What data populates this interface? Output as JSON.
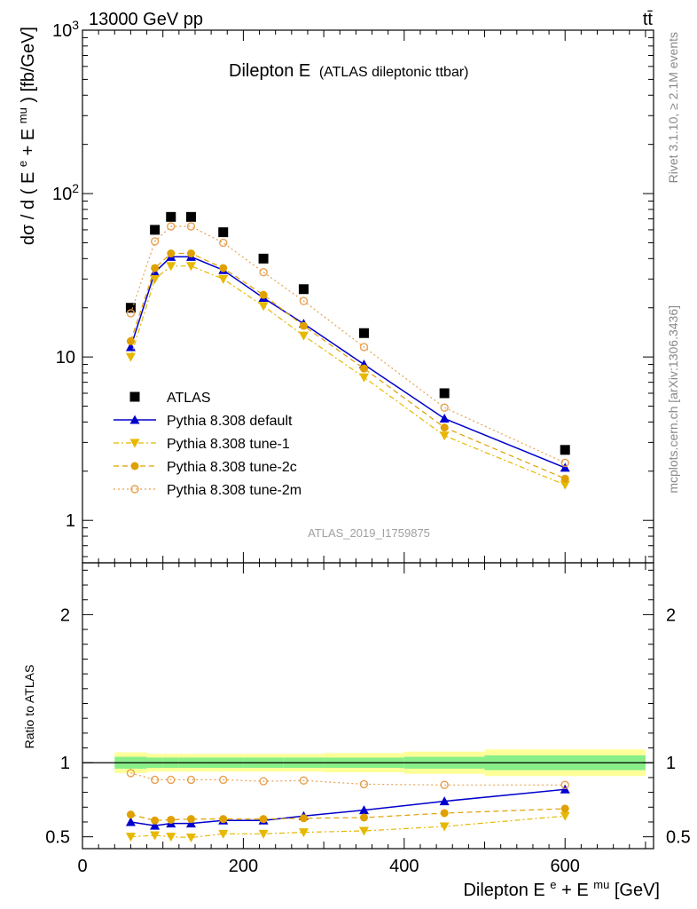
{
  "header": {
    "left": "13000 GeV pp",
    "right": "tt̄"
  },
  "side_labels": {
    "top": "Rivet 3.1.10, ≥ 2.1M events",
    "bottom": "mcplots.cern.ch [arXiv:1306.3436]"
  },
  "watermark": "ATLAS_2019_I1759875",
  "colors": {
    "atlas": "#000000",
    "default": "#0000cc",
    "tune1": "#e6b800",
    "tune2c": "#e0a000",
    "tune2m": "#e8a050",
    "band_inner": "#88ee88",
    "band_outer": "#ffff99"
  },
  "chart_data": [
    {
      "type": "scatter",
      "title": "Dilepton E",
      "subtitle": "(ATLAS dileptonic ttbar)",
      "ylabel": "dσ / d ( Eᵉ + Eᵐᵘ ) [fb/GeV]",
      "ylabel_parts": {
        "pre": "dσ / d ( E",
        "sup1": "e",
        "mid": " + E",
        "sup2": "mu",
        "post": " ) [fb/GeV]"
      },
      "y_scale": "log",
      "ylim": [
        0.55,
        1000
      ],
      "xlim": [
        0,
        710
      ],
      "y_tick_labels": [
        {
          "v": 1,
          "label": "1"
        },
        {
          "v": 10,
          "label": "10"
        },
        {
          "v": 100,
          "base": "10",
          "exp": "2"
        },
        {
          "v": 1000,
          "base": "10",
          "exp": "3"
        }
      ],
      "x": [
        60,
        90,
        110,
        135,
        175,
        225,
        275,
        350,
        450,
        600
      ],
      "series": [
        {
          "name": "ATLAS",
          "key": "atlas",
          "marker": "square",
          "line": "none",
          "values": [
            20,
            60,
            72,
            72,
            58,
            40,
            26,
            14,
            6,
            2.7
          ]
        },
        {
          "name": "Pythia 8.308 default",
          "key": "default",
          "marker": "triangle-up",
          "line": "solid",
          "values": [
            11.5,
            33,
            41,
            41,
            34,
            23,
            16,
            9,
            4.2,
            2.1
          ]
        },
        {
          "name": "Pythia 8.308 tune-1",
          "key": "tune1",
          "marker": "triangle-down",
          "line": "dashdot",
          "values": [
            10,
            30,
            36,
            36,
            30,
            20.5,
            13.5,
            7.5,
            3.3,
            1.65
          ]
        },
        {
          "name": "Pythia 8.308 tune-2c",
          "key": "tune2c",
          "marker": "circle",
          "line": "dashed",
          "values": [
            12.5,
            35,
            43,
            43,
            35,
            24,
            15.5,
            8.5,
            3.7,
            1.8
          ]
        },
        {
          "name": "Pythia 8.308 tune-2m",
          "key": "tune2m",
          "marker": "open-circle",
          "line": "dotted",
          "values": [
            18.5,
            51,
            63,
            63,
            50,
            33,
            22,
            11.5,
            4.9,
            2.25
          ]
        }
      ]
    },
    {
      "type": "scatter",
      "ylabel": "Ratio to ATLAS",
      "xlabel": "Dilepton Eᵉ + Eᵐᵘ [GeV]",
      "xlabel_parts": {
        "pre": "Dilepton E",
        "sup1": "e",
        "mid": " + E",
        "sup2": "mu",
        "post": " [GeV]"
      },
      "ylim": [
        0.42,
        2.35
      ],
      "xlim": [
        0,
        710
      ],
      "y_ticks": [
        0.5,
        1,
        2
      ],
      "y_tick_labels": [
        "0.5",
        "1",
        "2"
      ],
      "x_ticks": [
        0,
        200,
        400,
        600
      ],
      "x_tick_labels": [
        "0",
        "200",
        "400",
        "600"
      ],
      "uncertainty_bins": [
        {
          "x0": 40,
          "x1": 80,
          "inner": [
            0.96,
            1.04
          ],
          "outer": [
            0.93,
            1.07
          ]
        },
        {
          "x0": 80,
          "x1": 100,
          "inner": [
            0.965,
            1.035
          ],
          "outer": [
            0.94,
            1.06
          ]
        },
        {
          "x0": 100,
          "x1": 120,
          "inner": [
            0.965,
            1.035
          ],
          "outer": [
            0.94,
            1.06
          ]
        },
        {
          "x0": 120,
          "x1": 150,
          "inner": [
            0.965,
            1.035
          ],
          "outer": [
            0.94,
            1.06
          ]
        },
        {
          "x0": 150,
          "x1": 200,
          "inner": [
            0.965,
            1.035
          ],
          "outer": [
            0.94,
            1.06
          ]
        },
        {
          "x0": 200,
          "x1": 250,
          "inner": [
            0.965,
            1.035
          ],
          "outer": [
            0.94,
            1.06
          ]
        },
        {
          "x0": 250,
          "x1": 300,
          "inner": [
            0.965,
            1.035
          ],
          "outer": [
            0.94,
            1.06
          ]
        },
        {
          "x0": 300,
          "x1": 400,
          "inner": [
            0.965,
            1.035
          ],
          "outer": [
            0.935,
            1.065
          ]
        },
        {
          "x0": 400,
          "x1": 500,
          "inner": [
            0.96,
            1.04
          ],
          "outer": [
            0.925,
            1.075
          ]
        },
        {
          "x0": 500,
          "x1": 700,
          "inner": [
            0.95,
            1.05
          ],
          "outer": [
            0.91,
            1.09
          ]
        }
      ],
      "x": [
        60,
        90,
        110,
        135,
        175,
        225,
        275,
        350,
        450,
        600
      ],
      "series": [
        {
          "name": "Pythia 8.308 default",
          "key": "default",
          "marker": "triangle-up",
          "line": "solid",
          "values": [
            0.6,
            0.575,
            0.59,
            0.59,
            0.61,
            0.61,
            0.64,
            0.68,
            0.74,
            0.82
          ]
        },
        {
          "name": "Pythia 8.308 tune-1",
          "key": "tune1",
          "marker": "triangle-down",
          "line": "dashdot",
          "values": [
            0.5,
            0.51,
            0.5,
            0.495,
            0.52,
            0.52,
            0.53,
            0.54,
            0.57,
            0.64
          ]
        },
        {
          "name": "Pythia 8.308 tune-2c",
          "key": "tune2c",
          "marker": "circle",
          "line": "dashed",
          "values": [
            0.65,
            0.61,
            0.615,
            0.62,
            0.62,
            0.62,
            0.625,
            0.63,
            0.66,
            0.69
          ]
        },
        {
          "name": "Pythia 8.308 tune-2m",
          "key": "tune2m",
          "marker": "open-circle",
          "line": "dotted",
          "values": [
            0.93,
            0.885,
            0.885,
            0.885,
            0.885,
            0.875,
            0.88,
            0.855,
            0.85,
            0.85
          ]
        }
      ]
    }
  ]
}
